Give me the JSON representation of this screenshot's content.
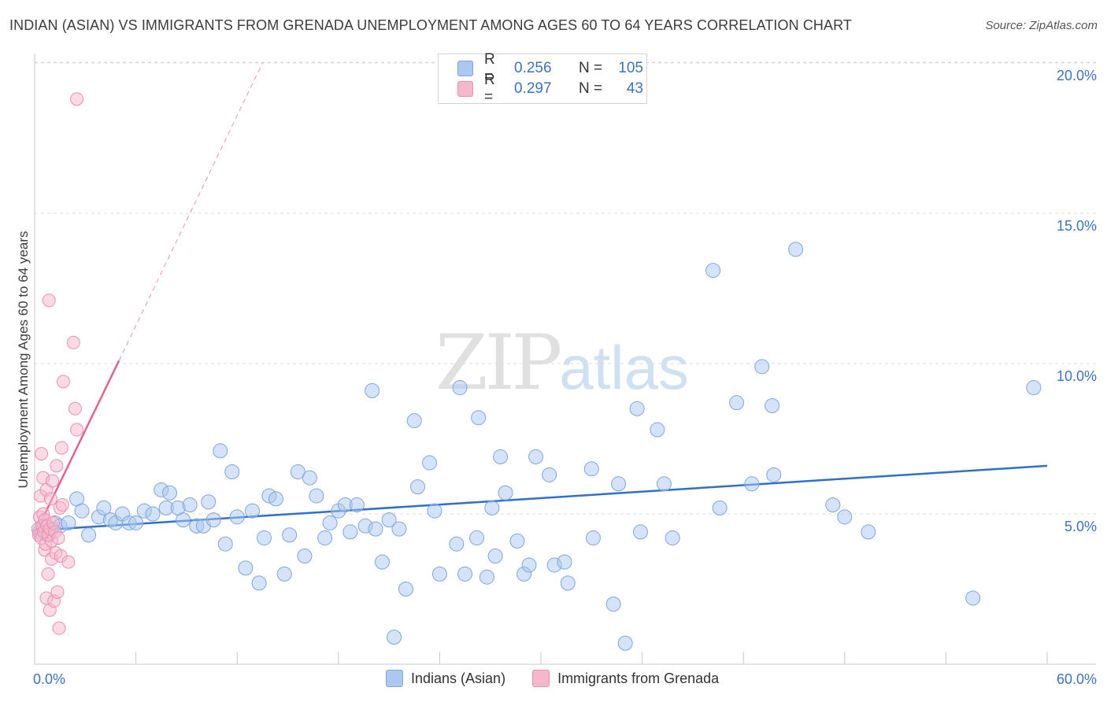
{
  "header": {
    "title": "INDIAN (ASIAN) VS IMMIGRANTS FROM GRENADA UNEMPLOYMENT AMONG AGES 60 TO 64 YEARS CORRELATION CHART",
    "source": "Source: ZipAtlas.com"
  },
  "watermark": {
    "zip": "ZIP",
    "atlas": "atlas"
  },
  "legend_top": {
    "rows": [
      {
        "r_label": "R =",
        "r_value": "0.256",
        "n_label": "N =",
        "n_value": "105"
      },
      {
        "r_label": "R =",
        "r_value": "0.297",
        "n_label": "N =",
        "n_value": "43"
      }
    ]
  },
  "legend_bottom": {
    "series1": "Indians (Asian)",
    "series2": "Immigrants from Grenada"
  },
  "colors": {
    "blue_fill": "#aac8f0",
    "blue_stroke": "#7fa6df",
    "blue_line": "#2f6fcf",
    "pink_fill": "#f5b7cb",
    "pink_stroke": "#eb8fae",
    "pink_line": "#e3638f",
    "grid": "#dcdcdc",
    "axis_text": "#3a73c9"
  },
  "chart_data": {
    "type": "scatter",
    "title": "INDIAN (ASIAN) VS IMMIGRANTS FROM GRENADA UNEMPLOYMENT AMONG AGES 60 TO 64 YEARS CORRELATION CHART",
    "xlabel": "",
    "ylabel": "Unemployment Among Ages 60 to 64 years",
    "xlim": [
      0,
      60
    ],
    "ylim": [
      0,
      20.5
    ],
    "x_tick_labels": {
      "min": "0.0%",
      "max": "60.0%"
    },
    "y_ticks": [
      {
        "value": 5,
        "label": "5.0%"
      },
      {
        "value": 10,
        "label": "10.0%"
      },
      {
        "value": 15,
        "label": "15.0%"
      },
      {
        "value": 20,
        "label": "20.0%"
      }
    ],
    "series": [
      {
        "name": "Indians (Asian)",
        "R": 0.256,
        "N": 105,
        "trend": {
          "x": [
            0,
            60
          ],
          "y": [
            4.45,
            6.6
          ],
          "dashed": false
        },
        "points": [
          [
            0.3,
            4.4
          ],
          [
            0.5,
            4.6
          ],
          [
            0.8,
            4.3
          ],
          [
            1.0,
            4.5
          ],
          [
            1.2,
            4.7
          ],
          [
            1.5,
            4.6
          ],
          [
            2.0,
            4.7
          ],
          [
            2.5,
            5.5
          ],
          [
            2.8,
            5.1
          ],
          [
            3.2,
            4.3
          ],
          [
            3.8,
            4.9
          ],
          [
            4.1,
            5.2
          ],
          [
            4.5,
            4.8
          ],
          [
            4.8,
            4.7
          ],
          [
            5.2,
            5.0
          ],
          [
            5.6,
            4.7
          ],
          [
            6.0,
            4.7
          ],
          [
            6.5,
            5.1
          ],
          [
            7.0,
            5.0
          ],
          [
            7.5,
            5.8
          ],
          [
            7.8,
            5.2
          ],
          [
            8.0,
            5.7
          ],
          [
            8.5,
            5.2
          ],
          [
            8.8,
            4.8
          ],
          [
            9.2,
            5.3
          ],
          [
            9.6,
            4.6
          ],
          [
            10.0,
            4.6
          ],
          [
            10.3,
            5.4
          ],
          [
            10.6,
            4.8
          ],
          [
            11.0,
            7.1
          ],
          [
            11.3,
            4.0
          ],
          [
            11.7,
            6.4
          ],
          [
            12.0,
            4.9
          ],
          [
            12.5,
            3.2
          ],
          [
            12.9,
            5.1
          ],
          [
            13.3,
            2.7
          ],
          [
            13.6,
            4.2
          ],
          [
            13.9,
            5.6
          ],
          [
            14.3,
            5.5
          ],
          [
            14.8,
            3.0
          ],
          [
            15.1,
            4.3
          ],
          [
            15.6,
            6.4
          ],
          [
            16.0,
            3.6
          ],
          [
            16.3,
            6.2
          ],
          [
            16.7,
            5.6
          ],
          [
            17.2,
            4.2
          ],
          [
            17.5,
            4.7
          ],
          [
            18.0,
            5.1
          ],
          [
            18.4,
            5.3
          ],
          [
            18.7,
            4.4
          ],
          [
            19.1,
            5.3
          ],
          [
            19.6,
            4.6
          ],
          [
            20.0,
            9.1
          ],
          [
            20.2,
            4.5
          ],
          [
            20.6,
            3.4
          ],
          [
            21.0,
            4.8
          ],
          [
            21.3,
            0.9
          ],
          [
            21.6,
            4.5
          ],
          [
            22.0,
            2.5
          ],
          [
            22.5,
            8.1
          ],
          [
            22.7,
            5.9
          ],
          [
            23.4,
            6.7
          ],
          [
            23.7,
            5.1
          ],
          [
            24.0,
            3.0
          ],
          [
            25.0,
            4.0
          ],
          [
            25.2,
            9.2
          ],
          [
            25.5,
            3.0
          ],
          [
            26.2,
            4.2
          ],
          [
            26.3,
            8.2
          ],
          [
            26.8,
            2.9
          ],
          [
            27.1,
            5.2
          ],
          [
            27.3,
            3.6
          ],
          [
            27.6,
            6.9
          ],
          [
            27.9,
            5.7
          ],
          [
            28.6,
            4.1
          ],
          [
            29.0,
            3.0
          ],
          [
            29.3,
            3.3
          ],
          [
            29.7,
            6.9
          ],
          [
            30.5,
            6.3
          ],
          [
            30.8,
            3.3
          ],
          [
            31.4,
            3.4
          ],
          [
            31.6,
            2.7
          ],
          [
            33.0,
            6.5
          ],
          [
            33.1,
            4.2
          ],
          [
            34.3,
            2.0
          ],
          [
            34.6,
            6.0
          ],
          [
            35.0,
            0.7
          ],
          [
            35.7,
            8.5
          ],
          [
            35.9,
            4.4
          ],
          [
            36.9,
            7.8
          ],
          [
            37.3,
            6.0
          ],
          [
            37.8,
            4.2
          ],
          [
            40.2,
            13.1
          ],
          [
            40.6,
            5.2
          ],
          [
            41.6,
            8.7
          ],
          [
            42.5,
            6.0
          ],
          [
            43.1,
            9.9
          ],
          [
            43.7,
            8.6
          ],
          [
            43.8,
            6.3
          ],
          [
            45.1,
            13.8
          ],
          [
            47.3,
            5.3
          ],
          [
            48.0,
            4.9
          ],
          [
            49.4,
            4.4
          ],
          [
            55.6,
            2.2
          ],
          [
            59.2,
            9.2
          ]
        ]
      },
      {
        "name": "Immigrants from Grenada",
        "R": 0.297,
        "N": 43,
        "trend": {
          "x": [
            0,
            5.0
          ],
          "y": [
            4.3,
            10.1
          ],
          "dashed": false
        },
        "trend_dashed": {
          "x": [
            5.0,
            13.5
          ],
          "y": [
            10.1,
            20.0
          ],
          "dashed": true
        },
        "points": [
          [
            0.2,
            4.5
          ],
          [
            0.25,
            4.3
          ],
          [
            0.3,
            4.9
          ],
          [
            0.35,
            5.6
          ],
          [
            0.4,
            7.0
          ],
          [
            0.4,
            4.2
          ],
          [
            0.45,
            4.6
          ],
          [
            0.5,
            5.0
          ],
          [
            0.5,
            6.2
          ],
          [
            0.55,
            4.4
          ],
          [
            0.6,
            4.8
          ],
          [
            0.6,
            3.8
          ],
          [
            0.65,
            4.0
          ],
          [
            0.7,
            2.2
          ],
          [
            0.7,
            5.8
          ],
          [
            0.75,
            4.6
          ],
          [
            0.8,
            4.3
          ],
          [
            0.8,
            3.0
          ],
          [
            0.85,
            12.1
          ],
          [
            0.9,
            4.5
          ],
          [
            0.9,
            1.8
          ],
          [
            0.95,
            5.5
          ],
          [
            1.0,
            3.5
          ],
          [
            1.0,
            4.1
          ],
          [
            1.05,
            6.1
          ],
          [
            1.1,
            4.7
          ],
          [
            1.15,
            2.1
          ],
          [
            1.2,
            4.4
          ],
          [
            1.25,
            3.7
          ],
          [
            1.3,
            6.6
          ],
          [
            1.35,
            2.4
          ],
          [
            1.4,
            4.2
          ],
          [
            1.45,
            1.2
          ],
          [
            1.5,
            5.2
          ],
          [
            1.55,
            3.6
          ],
          [
            1.6,
            7.2
          ],
          [
            1.65,
            5.3
          ],
          [
            1.7,
            9.4
          ],
          [
            2.0,
            3.4
          ],
          [
            2.3,
            10.7
          ],
          [
            2.4,
            8.5
          ],
          [
            2.5,
            7.8
          ],
          [
            2.5,
            18.8
          ]
        ]
      }
    ]
  }
}
